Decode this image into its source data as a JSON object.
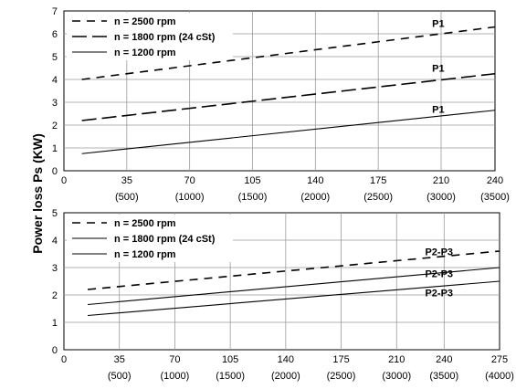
{
  "ylabel": "Power loss Ps (KW)",
  "chart_data": [
    {
      "type": "line",
      "xlim": [
        0,
        240
      ],
      "ylim": [
        0,
        7
      ],
      "x_ticks": [
        "0",
        "35",
        "70",
        "105",
        "140",
        "175",
        "210",
        "240"
      ],
      "x_ticks_secondary": [
        "(500)",
        "(1000)",
        "(1500)",
        "(2000)",
        "(2500)",
        "(3000)",
        "(3500)"
      ],
      "y_ticks": [
        "0",
        "1",
        "2",
        "3",
        "4",
        "5",
        "6",
        "7"
      ],
      "grid": true,
      "legend_position": "top-left",
      "series": [
        {
          "name": "n = 2500 rpm",
          "style": "dashed",
          "x": [
            10,
            240
          ],
          "y": [
            4.0,
            6.3
          ]
        },
        {
          "name": "n = 1800 rpm (24 cSt)",
          "style": "dashed-long",
          "x": [
            10,
            240
          ],
          "y": [
            2.2,
            4.25
          ]
        },
        {
          "name": "n = 1200 rpm",
          "style": "solid",
          "x": [
            10,
            240
          ],
          "y": [
            0.75,
            2.65
          ]
        }
      ],
      "annotations": [
        {
          "text": "P1",
          "x": 205,
          "y": 6.3
        },
        {
          "text": "P1",
          "x": 205,
          "y": 4.35
        },
        {
          "text": "P1",
          "x": 205,
          "y": 2.55
        }
      ]
    },
    {
      "type": "line",
      "xlim": [
        0,
        275
      ],
      "ylim": [
        0,
        5
      ],
      "x_ticks": [
        "0",
        "35",
        "70",
        "105",
        "140",
        "175",
        "210",
        "240",
        "275"
      ],
      "x_ticks_secondary": [
        "(500)",
        "(1000)",
        "(1500)",
        "(2000)",
        "(2500)",
        "(3000)",
        "(3500)",
        "(4000)"
      ],
      "y_ticks": [
        "0",
        "1",
        "2",
        "3",
        "4",
        "5"
      ],
      "grid": true,
      "legend_position": "top-left",
      "series": [
        {
          "name": "n = 2500 rpm",
          "style": "dashed",
          "x": [
            15,
            275
          ],
          "y": [
            2.2,
            3.6
          ]
        },
        {
          "name": "n = 1800 rpm (24 cSt)",
          "style": "solid",
          "x": [
            15,
            275
          ],
          "y": [
            1.65,
            3.0
          ]
        },
        {
          "name": "n = 1200 rpm",
          "style": "solid",
          "x": [
            15,
            275
          ],
          "y": [
            1.25,
            2.5
          ]
        }
      ],
      "annotations": [
        {
          "text": "P2-P3",
          "x": 228,
          "y": 3.45
        },
        {
          "text": "P2-P3",
          "x": 228,
          "y": 2.65
        },
        {
          "text": "P2-P3",
          "x": 228,
          "y": 1.95
        }
      ]
    }
  ]
}
